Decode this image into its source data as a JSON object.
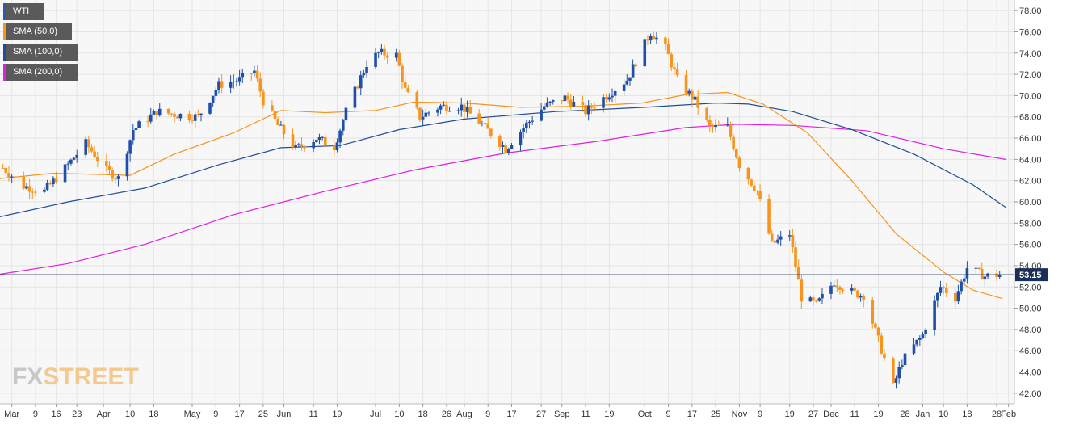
{
  "chart_data": {
    "type": "candlestick",
    "title": "",
    "legend": {
      "placement": "top-left",
      "entries": [
        {
          "name": "WTI",
          "color": "#2e5aa8"
        },
        {
          "name": "SMA (50,0)",
          "color": "#f7941d"
        },
        {
          "name": "SMA (100,0)",
          "color": "#1f4e96"
        },
        {
          "name": "SMA (200,0)",
          "color": "#e020e0"
        }
      ]
    },
    "colors": {
      "up": "#1f4fa8",
      "down": "#f7941d",
      "sma50": "#f7941d",
      "sma100": "#1f4e96",
      "sma200": "#e020e0",
      "last_line": "#1a2f5a",
      "last_badge": "#1a2f5a"
    },
    "y_axis": {
      "position": "right",
      "min": 41.0,
      "max": 79.0,
      "ticks": [
        "42.00",
        "44.00",
        "46.00",
        "48.00",
        "50.00",
        "52.00",
        "54.00",
        "56.00",
        "58.00",
        "60.00",
        "62.00",
        "64.00",
        "66.00",
        "68.00",
        "70.00",
        "72.00",
        "74.00",
        "76.00",
        "78.00"
      ]
    },
    "x_axis": {
      "start": "2018-02-25",
      "end": "2019-02-03",
      "ticks": [
        {
          "date": "2018-03-01",
          "label": "Mar"
        },
        {
          "date": "2018-03-09",
          "label": "9"
        },
        {
          "date": "2018-03-16",
          "label": "16"
        },
        {
          "date": "2018-03-23",
          "label": "23"
        },
        {
          "date": "2018-04-01",
          "label": "Apr"
        },
        {
          "date": "2018-04-10",
          "label": "10"
        },
        {
          "date": "2018-04-18",
          "label": "18"
        },
        {
          "date": "2018-05-01",
          "label": "May"
        },
        {
          "date": "2018-05-09",
          "label": "9"
        },
        {
          "date": "2018-05-17",
          "label": "17"
        },
        {
          "date": "2018-05-25",
          "label": "25"
        },
        {
          "date": "2018-06-01",
          "label": "Jun"
        },
        {
          "date": "2018-06-11",
          "label": "11"
        },
        {
          "date": "2018-06-19",
          "label": "19"
        },
        {
          "date": "2018-07-02",
          "label": "Jul"
        },
        {
          "date": "2018-07-10",
          "label": "10"
        },
        {
          "date": "2018-07-18",
          "label": "18"
        },
        {
          "date": "2018-07-26",
          "label": "26"
        },
        {
          "date": "2018-08-01",
          "label": "Aug"
        },
        {
          "date": "2018-08-09",
          "label": "9"
        },
        {
          "date": "2018-08-17",
          "label": "17"
        },
        {
          "date": "2018-08-27",
          "label": "27"
        },
        {
          "date": "2018-09-03",
          "label": "Sep"
        },
        {
          "date": "2018-09-11",
          "label": "11"
        },
        {
          "date": "2018-09-19",
          "label": "19"
        },
        {
          "date": "2018-10-01",
          "label": "Oct"
        },
        {
          "date": "2018-10-09",
          "label": "9"
        },
        {
          "date": "2018-10-17",
          "label": "17"
        },
        {
          "date": "2018-10-25",
          "label": "25"
        },
        {
          "date": "2018-11-02",
          "label": "Nov"
        },
        {
          "date": "2018-11-09",
          "label": "9"
        },
        {
          "date": "2018-11-19",
          "label": "19"
        },
        {
          "date": "2018-11-27",
          "label": "27"
        },
        {
          "date": "2018-12-03",
          "label": "Dec"
        },
        {
          "date": "2018-12-11",
          "label": "11"
        },
        {
          "date": "2018-12-19",
          "label": "19"
        },
        {
          "date": "2018-12-28",
          "label": "28"
        },
        {
          "date": "2019-01-03",
          "label": "Jan"
        },
        {
          "date": "2019-01-10",
          "label": "10"
        },
        {
          "date": "2019-01-18",
          "label": "18"
        },
        {
          "date": "2019-01-28",
          "label": "28"
        },
        {
          "date": "2019-02-01",
          "label": "Feb"
        }
      ]
    },
    "last_price": {
      "value": 53.15,
      "label": "53.15"
    },
    "price_path": [
      [
        "2018-02-26",
        63.2
      ],
      [
        "2018-03-05",
        61.5
      ],
      [
        "2018-03-12",
        61.0
      ],
      [
        "2018-03-20",
        63.5
      ],
      [
        "2018-03-26",
        65.5
      ],
      [
        "2018-04-02",
        63.0
      ],
      [
        "2018-04-06",
        62.2
      ],
      [
        "2018-04-11",
        66.8
      ],
      [
        "2018-04-19",
        68.5
      ],
      [
        "2018-04-26",
        68.2
      ],
      [
        "2018-05-03",
        68.0
      ],
      [
        "2018-05-10",
        71.0
      ],
      [
        "2018-05-17",
        71.5
      ],
      [
        "2018-05-22",
        72.3
      ],
      [
        "2018-05-25",
        69.5
      ],
      [
        "2018-05-30",
        67.2
      ],
      [
        "2018-06-05",
        65.0
      ],
      [
        "2018-06-12",
        66.0
      ],
      [
        "2018-06-18",
        65.2
      ],
      [
        "2018-06-22",
        68.5
      ],
      [
        "2018-06-29",
        73.0
      ],
      [
        "2018-07-03",
        74.0
      ],
      [
        "2018-07-09",
        73.8
      ],
      [
        "2018-07-12",
        70.5
      ],
      [
        "2018-07-17",
        68.0
      ],
      [
        "2018-07-24",
        69.0
      ],
      [
        "2018-07-31",
        69.0
      ],
      [
        "2018-08-08",
        67.0
      ],
      [
        "2018-08-15",
        65.0
      ],
      [
        "2018-08-21",
        67.0
      ],
      [
        "2018-08-28",
        69.0
      ],
      [
        "2018-09-04",
        69.8
      ],
      [
        "2018-09-11",
        68.5
      ],
      [
        "2018-09-18",
        70.0
      ],
      [
        "2018-09-25",
        71.5
      ],
      [
        "2018-10-03",
        76.0
      ],
      [
        "2018-10-08",
        74.5
      ],
      [
        "2018-10-12",
        71.5
      ],
      [
        "2018-10-18",
        69.5
      ],
      [
        "2018-10-23",
        67.0
      ],
      [
        "2018-10-29",
        67.0
      ],
      [
        "2018-11-02",
        63.5
      ],
      [
        "2018-11-08",
        61.0
      ],
      [
        "2018-11-13",
        56.0
      ],
      [
        "2018-11-19",
        57.0
      ],
      [
        "2018-11-23",
        51.0
      ],
      [
        "2018-11-28",
        50.3
      ],
      [
        "2018-12-04",
        52.5
      ],
      [
        "2018-12-10",
        51.5
      ],
      [
        "2018-12-14",
        51.2
      ],
      [
        "2018-12-19",
        47.0
      ],
      [
        "2018-12-24",
        42.6
      ],
      [
        "2018-12-27",
        45.0
      ],
      [
        "2019-01-03",
        47.5
      ],
      [
        "2019-01-09",
        52.0
      ],
      [
        "2019-01-14",
        51.0
      ],
      [
        "2019-01-18",
        53.8
      ],
      [
        "2019-01-24",
        53.0
      ],
      [
        "2019-01-29",
        53.15
      ]
    ],
    "sma50": [
      [
        "2018-02-25",
        62.2
      ],
      [
        "2018-03-15",
        62.7
      ],
      [
        "2018-04-10",
        62.5
      ],
      [
        "2018-04-25",
        64.5
      ],
      [
        "2018-05-15",
        66.5
      ],
      [
        "2018-05-31",
        68.6
      ],
      [
        "2018-06-15",
        68.4
      ],
      [
        "2018-07-02",
        68.6
      ],
      [
        "2018-07-15",
        69.4
      ],
      [
        "2018-08-01",
        69.3
      ],
      [
        "2018-08-20",
        68.9
      ],
      [
        "2018-09-10",
        69.0
      ],
      [
        "2018-09-30",
        69.3
      ],
      [
        "2018-10-15",
        70.1
      ],
      [
        "2018-10-29",
        70.3
      ],
      [
        "2018-11-10",
        69.2
      ],
      [
        "2018-11-25",
        66.5
      ],
      [
        "2018-12-10",
        62.0
      ],
      [
        "2018-12-25",
        57.0
      ],
      [
        "2019-01-10",
        53.4
      ],
      [
        "2019-01-20",
        51.7
      ],
      [
        "2019-01-30",
        50.9
      ]
    ],
    "sma100": [
      [
        "2018-02-25",
        58.6
      ],
      [
        "2018-03-20",
        60.0
      ],
      [
        "2018-04-15",
        61.3
      ],
      [
        "2018-05-10",
        63.5
      ],
      [
        "2018-05-31",
        65.1
      ],
      [
        "2018-06-20",
        65.3
      ],
      [
        "2018-07-10",
        66.8
      ],
      [
        "2018-08-01",
        67.8
      ],
      [
        "2018-09-01",
        68.5
      ],
      [
        "2018-10-01",
        68.9
      ],
      [
        "2018-10-25",
        69.3
      ],
      [
        "2018-11-05",
        69.2
      ],
      [
        "2018-11-20",
        68.5
      ],
      [
        "2018-12-10",
        66.8
      ],
      [
        "2018-12-31",
        64.5
      ],
      [
        "2019-01-20",
        61.6
      ],
      [
        "2019-01-31",
        59.5
      ]
    ],
    "sma200": [
      [
        "2018-02-25",
        53.2
      ],
      [
        "2018-03-20",
        54.2
      ],
      [
        "2018-04-15",
        56.0
      ],
      [
        "2018-05-15",
        58.8
      ],
      [
        "2018-06-15",
        61.0
      ],
      [
        "2018-07-15",
        63.0
      ],
      [
        "2018-08-15",
        64.6
      ],
      [
        "2018-09-15",
        65.7
      ],
      [
        "2018-10-15",
        67.0
      ],
      [
        "2018-11-01",
        67.3
      ],
      [
        "2018-11-20",
        67.2
      ],
      [
        "2018-12-15",
        66.7
      ],
      [
        "2019-01-10",
        65.0
      ],
      [
        "2019-01-31",
        64.0
      ]
    ]
  },
  "watermark": {
    "part1": "FX",
    "part2": "STREET"
  }
}
